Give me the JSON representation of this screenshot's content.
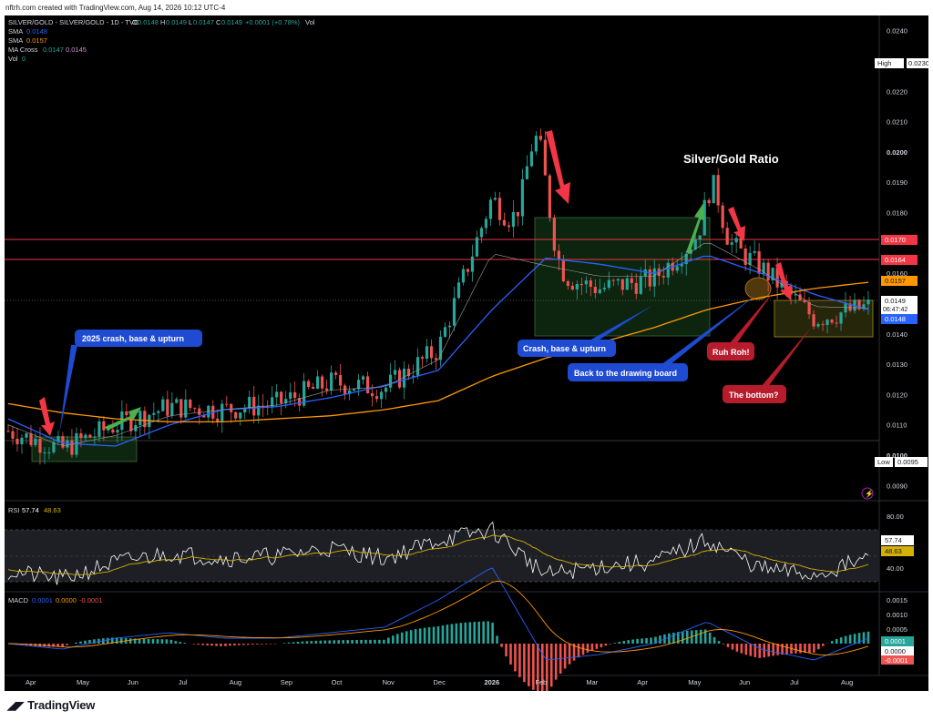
{
  "header": {
    "created_by": "nftrh.com created with TradingView.com, Aug 14, 2026 10:12 UTC-4"
  },
  "legend": {
    "symbol": "SILVER/GOLD - SILVER/GOLD - 1D - TVC",
    "ohlc": {
      "o_label": "O",
      "o": "0.0148",
      "h_label": "H",
      "h": "0.0149",
      "l_label": "L",
      "l": "0.0147",
      "c_label": "C",
      "c": "0.0149",
      "change": "+0.0001 (+0.78%)"
    },
    "vol_label": "Vol",
    "sma1_label": "SMA",
    "sma1_value": "0.0148",
    "sma2_label": "SMA",
    "sma2_value": "0.0157",
    "macross_label": "MA Cross",
    "macross_v1": "0.0147",
    "macross_v2": "0.0145",
    "vol2_label": "Vol",
    "vol2_value": "0"
  },
  "rsi": {
    "label": "RSI",
    "value": "57.74",
    "ma": "48.63",
    "ticks": [
      "80.00",
      "40.00"
    ]
  },
  "macd": {
    "label": "MACD",
    "macd": "0.0001",
    "signal": "0.0000",
    "hist": "-0.0001",
    "ticks": [
      "0.0015",
      "0.0010",
      "0.0005"
    ]
  },
  "price_axis": {
    "ticks": [
      "0.0240",
      "0.0220",
      "0.0210",
      "0.0200",
      "0.0190",
      "0.0180",
      "0.0160",
      "0.0150",
      "0.0140",
      "0.0130",
      "0.0120",
      "0.0110",
      "0.0100",
      "0.0090"
    ],
    "high_label": "High",
    "high_value": "0.0230",
    "low_label": "Low",
    "low_value": "0.0095",
    "labels": [
      {
        "text": "0.0170",
        "color": "#f23645"
      },
      {
        "text": "0.0164",
        "color": "#f23645"
      },
      {
        "text": "0.0157",
        "color": "#ff9800"
      },
      {
        "text": "0.0149",
        "color": "#ffffff"
      },
      {
        "text": "06:47:42",
        "color": "#ffffff"
      },
      {
        "text": "0.0148",
        "color": "#2962ff"
      }
    ]
  },
  "time_axis": [
    "Apr",
    "May",
    "Jun",
    "Jul",
    "Aug",
    "Sep",
    "Oct",
    "Nov",
    "Dec",
    "2026",
    "Feb",
    "Mar",
    "Apr",
    "May",
    "Jun",
    "Jul",
    "Aug"
  ],
  "annotations": {
    "title": "Silver/Gold Ratio",
    "crash_2025": "2025 crash, base & upturn",
    "crash_base": "Crash, base & upturn",
    "drawing_board": "Back to the drawing board",
    "ruh_roh": "Ruh Roh!",
    "bottom": "The bottom?"
  },
  "colors": {
    "up": "#26a69a",
    "down": "#ef5350",
    "sma_blue": "#2962ff",
    "sma_orange": "#ff9800",
    "red_line": "#f23645",
    "rsi": "#ffffff",
    "rsi_ma": "#d4b106",
    "annot_blue": "#1e4bd2",
    "annot_red": "#b71c2c"
  },
  "footer": {
    "brand": "TradingView"
  },
  "chart_data": {
    "type": "line",
    "title": "Silver/Gold Ratio",
    "xlabel": "",
    "ylabel": "",
    "ylim": [
      0.0085,
      0.0245
    ],
    "grid": false,
    "legend": "top-left",
    "x": [
      "2025-04",
      "2025-05",
      "2025-06",
      "2025-07",
      "2025-08",
      "2025-09",
      "2025-10",
      "2025-11",
      "2025-12",
      "2026-01",
      "2026-02",
      "2026-03",
      "2026-04",
      "2026-05",
      "2026-06",
      "2026-07",
      "2026-08"
    ],
    "series": [
      {
        "name": "SILVER/GOLD",
        "values": [
          0.0108,
          0.0102,
          0.011,
          0.0116,
          0.0115,
          0.0117,
          0.0124,
          0.0122,
          0.0135,
          0.0185,
          0.016,
          0.0155,
          0.0158,
          0.0175,
          0.0162,
          0.0145,
          0.0149
        ]
      },
      {
        "name": "SMA",
        "values": [
          0.0112,
          0.0104,
          0.0103,
          0.011,
          0.0115,
          0.0116,
          0.0119,
          0.0123,
          0.0128,
          0.0148,
          0.0165,
          0.0163,
          0.016,
          0.0166,
          0.016,
          0.0153,
          0.0148
        ]
      },
      {
        "name": "SMA",
        "values": [
          0.0117,
          0.0114,
          0.0112,
          0.0111,
          0.0111,
          0.0112,
          0.0113,
          0.0115,
          0.0118,
          0.0126,
          0.0132,
          0.0137,
          0.0142,
          0.0148,
          0.0152,
          0.0155,
          0.0157
        ]
      }
    ],
    "high": 0.023,
    "low": 0.0095,
    "levels": [
      0.017,
      0.0164
    ]
  }
}
